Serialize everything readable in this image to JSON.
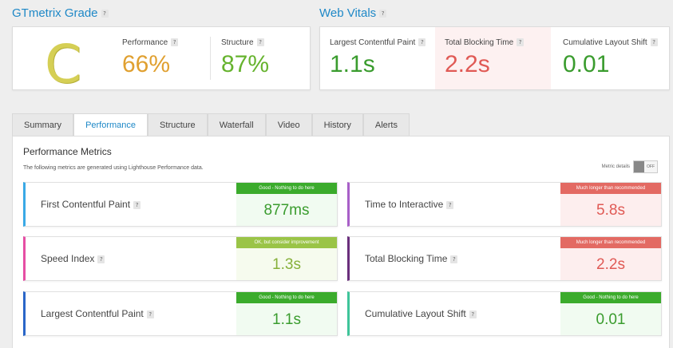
{
  "grade": {
    "title": "GTmetrix Grade",
    "letter": "C",
    "performance_label": "Performance",
    "performance_value": "66%",
    "structure_label": "Structure",
    "structure_value": "87%"
  },
  "web_vitals": {
    "title": "Web Vitals",
    "lcp_label": "Largest Contentful Paint",
    "lcp_value": "1.1s",
    "tbt_label": "Total Blocking Time",
    "tbt_value": "2.2s",
    "cls_label": "Cumulative Layout Shift",
    "cls_value": "0.01"
  },
  "help_glyph": "?",
  "tabs": [
    {
      "label": "Summary"
    },
    {
      "label": "Performance"
    },
    {
      "label": "Structure"
    },
    {
      "label": "Waterfall"
    },
    {
      "label": "Video"
    },
    {
      "label": "History"
    },
    {
      "label": "Alerts"
    }
  ],
  "active_tab": "Performance",
  "performance_metrics": {
    "title": "Performance Metrics",
    "subtitle": "The following metrics are generated using Lighthouse Performance data.",
    "metric_details_label": "Metric details",
    "toggle_label": "OFF",
    "metrics": [
      {
        "name": "First Contentful Paint",
        "status": "Good - Nothing to do here",
        "value": "877ms"
      },
      {
        "name": "Time to Interactive",
        "status": "Much longer than recommended",
        "value": "5.8s"
      },
      {
        "name": "Speed Index",
        "status": "OK, but consider improvement",
        "value": "1.3s"
      },
      {
        "name": "Total Blocking Time",
        "status": "Much longer than recommended",
        "value": "2.2s"
      },
      {
        "name": "Largest Contentful Paint",
        "status": "Good - Nothing to do here",
        "value": "1.1s"
      },
      {
        "name": "Cumulative Layout Shift",
        "status": "Good - Nothing to do here",
        "value": "0.01"
      }
    ]
  },
  "colors": {
    "brand_blue": "#1e88c7",
    "grade_c": "#d5cf55",
    "performance_orange": "#e0a030",
    "good_green": "#3bab2c",
    "ok_olive": "#9ac447",
    "bad_red": "#e36a63",
    "fcp_border": "#3aa9e6",
    "si_border": "#e64ea4",
    "lcp_border": "#2a66c8",
    "tti_border": "#a85fc8",
    "tbt_border": "#6a2f7c",
    "cls_border": "#3fc49a"
  }
}
